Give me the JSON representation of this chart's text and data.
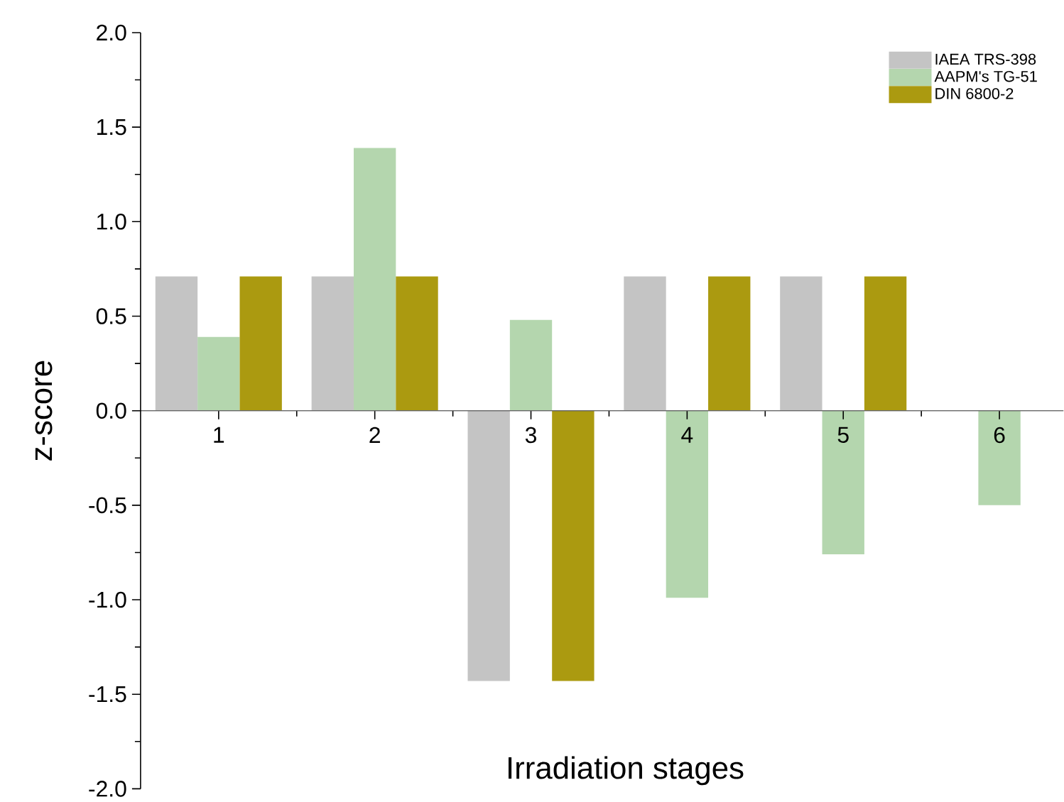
{
  "chart_data": {
    "type": "bar",
    "xlabel": "Irradiation stages",
    "ylabel": "z-score",
    "categories": [
      "1",
      "2",
      "3",
      "4",
      "5",
      "6"
    ],
    "series": [
      {
        "name": "IAEA TRS-398",
        "color": "#c4c4c4",
        "values": [
          0.71,
          0.71,
          -1.43,
          0.71,
          0.71,
          null
        ]
      },
      {
        "name": "AAPM's TG-51",
        "color": "#b4d6ae",
        "values": [
          0.39,
          1.39,
          0.48,
          -0.99,
          -0.76,
          -0.5
        ]
      },
      {
        "name": "DIN 6800-2",
        "color": "#ab9a10",
        "values": [
          0.71,
          0.71,
          -1.43,
          0.71,
          0.71,
          null
        ]
      }
    ],
    "ylim": [
      -2.0,
      2.0
    ],
    "yticks": [
      {
        "value": -2,
        "label": "-2.0"
      },
      -1.5,
      {
        "value": -1,
        "label": "-1.0"
      },
      -0.5,
      {
        "value": 0,
        "label": "0.0"
      },
      0.5,
      {
        "value": 1,
        "label": "1.0"
      },
      1.5,
      {
        "value": 2,
        "label": "2.0"
      }
    ],
    "grid": false,
    "legend": "top right"
  }
}
